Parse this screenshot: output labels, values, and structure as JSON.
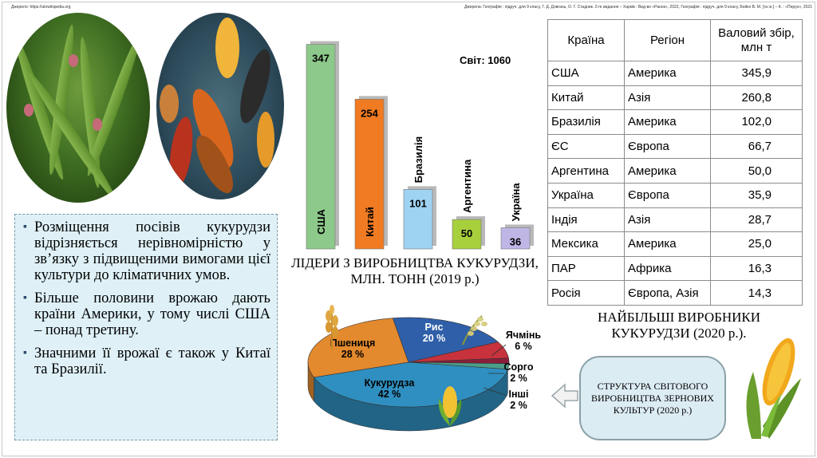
{
  "sources": {
    "left": "Джерело: https://ukrwikipedia.org",
    "right": "Джерела: Географія : підруч. для 9 класу, Г. Д. Довгань, О. Г. Стадник. 2-ге видання – Харків : Вид-во «Ранок», 2022, Географія : підруч. для 9 класу, Бойко В. М. [та ін.] – К. : «Перун», 2021"
  },
  "bullets": [
    "Розміщення посівів кукурудзи відрізняється нерівномірністю у зв’язку з підвищеними вимогами цієї культури до кліматичних умов.",
    "Більше половини врожаю дають країни Америки, у тому числі США – понад третину.",
    "Значними її врожаї є також у Китаї та Бразилії."
  ],
  "bar_title": "ЛІДЕРИ З ВИРОБНИЦТВА КУКУРУДЗИ, МЛН. ТОНН (2019 р.)",
  "table_title": "НАЙБІЛЬШІ ВИРОБНИКИ КУКУРУДЗИ (2020 р.).",
  "structure_label": "СТРУКТУРА СВІТОВОГО ВИРОБНИЦТВА ЗЕРНОВИХ КУЛЬТУР (2020 р.)",
  "icons": [
    "corn-field-photo",
    "corn-cobs-photo",
    "arrow-left-icon",
    "corn-icon",
    "wheat-icon",
    "rice-icon"
  ],
  "chart_data": [
    {
      "type": "bar",
      "categories": [
        "США",
        "Китай",
        "Бразилія",
        "Аргентина",
        "Україна"
      ],
      "values": [
        347,
        254,
        101,
        50,
        36
      ],
      "colors": [
        "#8dc98a",
        "#f07b22",
        "#9fd3f2",
        "#a8cf3c",
        "#c0b6e6"
      ],
      "annotation": "Світ: 1060",
      "ylim": [
        0,
        360
      ]
    },
    {
      "type": "table",
      "columns": [
        "Країна",
        "Регіон",
        "Валовий збір, млн т"
      ],
      "rows": [
        [
          "США",
          "Америка",
          "345,9"
        ],
        [
          "Китай",
          "Азія",
          "260,8"
        ],
        [
          "Бразилія",
          "Америка",
          "102,0"
        ],
        [
          "ЄС",
          "Європа",
          "66,7"
        ],
        [
          "Аргентина",
          "Америка",
          "50,0"
        ],
        [
          "Україна",
          "Європа",
          "35,9"
        ],
        [
          "Індія",
          "Азія",
          "28,7"
        ],
        [
          "Мексика",
          "Америка",
          "25,0"
        ],
        [
          "ПАР",
          "Африка",
          "16,3"
        ],
        [
          "Росія",
          "Європа, Азія",
          "14,3"
        ]
      ]
    },
    {
      "type": "pie",
      "slices": [
        {
          "label": "Кукурудза",
          "value": 42,
          "text": "42 %",
          "color": "#2f8fc0"
        },
        {
          "label": "Пшениця",
          "value": 28,
          "text": "28 %",
          "color": "#e38a2e"
        },
        {
          "label": "Рис",
          "value": 20,
          "text": "20 %",
          "color": "#2f5fa8"
        },
        {
          "label": "Ячмінь",
          "value": 6,
          "text": "6 %",
          "color": "#c8323c"
        },
        {
          "label": "Сорго",
          "value": 2,
          "text": "2 %",
          "color": "#8a1e3a"
        },
        {
          "label": "Інші",
          "value": 2,
          "text": "2 %",
          "color": "#4c9e8a"
        }
      ]
    }
  ]
}
